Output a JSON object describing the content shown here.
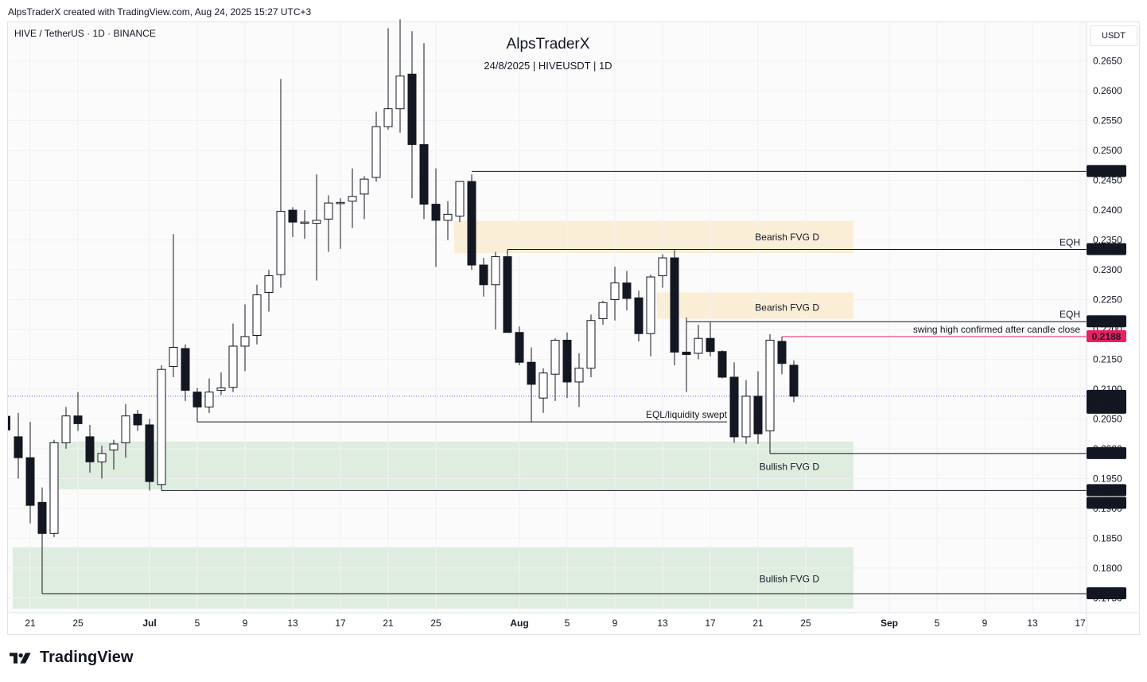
{
  "header": {
    "credit": "AlpsTraderX created with TradingView.com, Aug 24, 2025 15:27 UTC+3"
  },
  "symbol_line": "HIVE / TetherUS · 1D · BINANCE",
  "watermark": {
    "title": "AlpsTraderX",
    "subtitle": "24/8/2025 | HIVEUSDT | 1D"
  },
  "currency_button": "USDT",
  "footer": {
    "brand": "TradingView",
    "logo_icon": "tradingview-logo-icon"
  },
  "colors": {
    "bearish_zone": "#fbecd2",
    "bullish_zone": "#dcebdd",
    "pink": "#e91e63",
    "dark_label": "#131722",
    "price_dots": "#5b5bd6"
  },
  "chart_data": {
    "type": "candlestick",
    "symbol": "HIVEUSDT",
    "interval": "1D",
    "ylim": [
      0.1725,
      0.2715
    ],
    "x_range": [
      "2025-06-20",
      "2025-09-17"
    ],
    "price_axis_ticks": [
      "0.2650",
      "0.2600",
      "0.2550",
      "0.2500",
      "0.2450",
      "0.2400",
      "0.2350",
      "0.2300",
      "0.2250",
      "0.2200",
      "0.2150",
      "0.2100",
      "0.2050",
      "0.2000",
      "0.1950",
      "0.1900",
      "0.1850",
      "0.1800",
      "0.1750"
    ],
    "time_axis_ticks": [
      {
        "label": "21",
        "date": "2025-06-21"
      },
      {
        "label": "25",
        "date": "2025-06-25"
      },
      {
        "label": "Jul",
        "date": "2025-07-01"
      },
      {
        "label": "5",
        "date": "2025-07-05"
      },
      {
        "label": "9",
        "date": "2025-07-09"
      },
      {
        "label": "13",
        "date": "2025-07-13"
      },
      {
        "label": "17",
        "date": "2025-07-17"
      },
      {
        "label": "21",
        "date": "2025-07-21"
      },
      {
        "label": "25",
        "date": "2025-07-25"
      },
      {
        "label": "Aug",
        "date": "2025-08-01"
      },
      {
        "label": "5",
        "date": "2025-08-05"
      },
      {
        "label": "9",
        "date": "2025-08-09"
      },
      {
        "label": "13",
        "date": "2025-08-13"
      },
      {
        "label": "17",
        "date": "2025-08-17"
      },
      {
        "label": "21",
        "date": "2025-08-21"
      },
      {
        "label": "25",
        "date": "2025-08-25"
      },
      {
        "label": "Sep",
        "date": "2025-09-01"
      },
      {
        "label": "5",
        "date": "2025-09-05"
      },
      {
        "label": "9",
        "date": "2025-09-09"
      },
      {
        "label": "13",
        "date": "2025-09-13"
      },
      {
        "label": "17",
        "date": "2025-09-17"
      }
    ],
    "candles": [
      {
        "d": "2025-06-20",
        "o": 0.202,
        "h": 0.206,
        "l": 0.195,
        "c": 0.1985
      },
      {
        "d": "2025-06-21",
        "o": 0.1985,
        "h": 0.2045,
        "l": 0.1875,
        "c": 0.1905
      },
      {
        "d": "2025-06-22",
        "o": 0.191,
        "h": 0.1935,
        "l": 0.183,
        "c": 0.1858
      },
      {
        "d": "2025-06-23",
        "o": 0.1858,
        "h": 0.2015,
        "l": 0.1852,
        "c": 0.201
      },
      {
        "d": "2025-06-24",
        "o": 0.201,
        "h": 0.207,
        "l": 0.2,
        "c": 0.2055
      },
      {
        "d": "2025-06-25",
        "o": 0.2055,
        "h": 0.2095,
        "l": 0.203,
        "c": 0.2042
      },
      {
        "d": "2025-06-26",
        "o": 0.202,
        "h": 0.204,
        "l": 0.196,
        "c": 0.1978
      },
      {
        "d": "2025-06-27",
        "o": 0.1978,
        "h": 0.2005,
        "l": 0.195,
        "c": 0.1992
      },
      {
        "d": "2025-06-28",
        "o": 0.1998,
        "h": 0.2015,
        "l": 0.1965,
        "c": 0.2008
      },
      {
        "d": "2025-06-29",
        "o": 0.201,
        "h": 0.2075,
        "l": 0.1985,
        "c": 0.2055
      },
      {
        "d": "2025-06-30",
        "o": 0.2058,
        "h": 0.2065,
        "l": 0.203,
        "c": 0.204
      },
      {
        "d": "2025-07-01",
        "o": 0.204,
        "h": 0.205,
        "l": 0.193,
        "c": 0.1945
      },
      {
        "d": "2025-07-02",
        "o": 0.194,
        "h": 0.214,
        "l": 0.193,
        "c": 0.2133
      },
      {
        "d": "2025-07-03",
        "o": 0.2138,
        "h": 0.236,
        "l": 0.212,
        "c": 0.217
      },
      {
        "d": "2025-07-04",
        "o": 0.2168,
        "h": 0.2175,
        "l": 0.208,
        "c": 0.2098
      },
      {
        "d": "2025-07-05",
        "o": 0.2095,
        "h": 0.2102,
        "l": 0.205,
        "c": 0.207
      },
      {
        "d": "2025-07-06",
        "o": 0.207,
        "h": 0.2118,
        "l": 0.206,
        "c": 0.2095
      },
      {
        "d": "2025-07-07",
        "o": 0.2098,
        "h": 0.2128,
        "l": 0.209,
        "c": 0.2102
      },
      {
        "d": "2025-07-08",
        "o": 0.2103,
        "h": 0.221,
        "l": 0.2095,
        "c": 0.2172
      },
      {
        "d": "2025-07-09",
        "o": 0.2172,
        "h": 0.2242,
        "l": 0.213,
        "c": 0.2188
      },
      {
        "d": "2025-07-10",
        "o": 0.219,
        "h": 0.2275,
        "l": 0.2175,
        "c": 0.2258
      },
      {
        "d": "2025-07-11",
        "o": 0.2262,
        "h": 0.23,
        "l": 0.223,
        "c": 0.229
      },
      {
        "d": "2025-07-12",
        "o": 0.2292,
        "h": 0.262,
        "l": 0.227,
        "c": 0.2398
      },
      {
        "d": "2025-07-13",
        "o": 0.24,
        "h": 0.2405,
        "l": 0.2355,
        "c": 0.238
      },
      {
        "d": "2025-07-14",
        "o": 0.238,
        "h": 0.24,
        "l": 0.2352,
        "c": 0.238
      },
      {
        "d": "2025-07-15",
        "o": 0.2378,
        "h": 0.246,
        "l": 0.2282,
        "c": 0.2383
      },
      {
        "d": "2025-07-16",
        "o": 0.2385,
        "h": 0.2425,
        "l": 0.233,
        "c": 0.2412
      },
      {
        "d": "2025-07-17",
        "o": 0.2412,
        "h": 0.242,
        "l": 0.2335,
        "c": 0.2413
      },
      {
        "d": "2025-07-18",
        "o": 0.2415,
        "h": 0.247,
        "l": 0.237,
        "c": 0.2423
      },
      {
        "d": "2025-07-19",
        "o": 0.2427,
        "h": 0.2457,
        "l": 0.2385,
        "c": 0.2452
      },
      {
        "d": "2025-07-20",
        "o": 0.2455,
        "h": 0.2565,
        "l": 0.2448,
        "c": 0.254
      },
      {
        "d": "2025-07-21",
        "o": 0.254,
        "h": 0.2705,
        "l": 0.2535,
        "c": 0.257
      },
      {
        "d": "2025-07-22",
        "o": 0.257,
        "h": 0.272,
        "l": 0.253,
        "c": 0.2625
      },
      {
        "d": "2025-07-23",
        "o": 0.2628,
        "h": 0.27,
        "l": 0.242,
        "c": 0.251
      },
      {
        "d": "2025-07-24",
        "o": 0.251,
        "h": 0.268,
        "l": 0.2385,
        "c": 0.241
      },
      {
        "d": "2025-07-25",
        "o": 0.241,
        "h": 0.247,
        "l": 0.2305,
        "c": 0.2383
      },
      {
        "d": "2025-07-26",
        "o": 0.2383,
        "h": 0.2415,
        "l": 0.235,
        "c": 0.2393
      },
      {
        "d": "2025-07-27",
        "o": 0.239,
        "h": 0.244,
        "l": 0.238,
        "c": 0.2448
      },
      {
        "d": "2025-07-28",
        "o": 0.2448,
        "h": 0.246,
        "l": 0.23,
        "c": 0.2308
      },
      {
        "d": "2025-07-29",
        "o": 0.2308,
        "h": 0.232,
        "l": 0.2255,
        "c": 0.2275
      },
      {
        "d": "2025-07-30",
        "o": 0.2275,
        "h": 0.233,
        "l": 0.22,
        "c": 0.2322
      },
      {
        "d": "2025-07-31",
        "o": 0.2322,
        "h": 0.2325,
        "l": 0.22,
        "c": 0.2195
      },
      {
        "d": "2025-08-01",
        "o": 0.2195,
        "h": 0.2205,
        "l": 0.214,
        "c": 0.2145
      },
      {
        "d": "2025-08-02",
        "o": 0.2145,
        "h": 0.217,
        "l": 0.2085,
        "c": 0.2108
      },
      {
        "d": "2025-08-03",
        "o": 0.2085,
        "h": 0.2135,
        "l": 0.206,
        "c": 0.2127
      },
      {
        "d": "2025-08-04",
        "o": 0.2125,
        "h": 0.2185,
        "l": 0.208,
        "c": 0.2182
      },
      {
        "d": "2025-08-05",
        "o": 0.2182,
        "h": 0.2195,
        "l": 0.2085,
        "c": 0.2112
      },
      {
        "d": "2025-08-06",
        "o": 0.2112,
        "h": 0.216,
        "l": 0.207,
        "c": 0.2135
      },
      {
        "d": "2025-08-07",
        "o": 0.2135,
        "h": 0.2225,
        "l": 0.212,
        "c": 0.2215
      },
      {
        "d": "2025-08-08",
        "o": 0.2218,
        "h": 0.2248,
        "l": 0.2208,
        "c": 0.2245
      },
      {
        "d": "2025-08-09",
        "o": 0.225,
        "h": 0.2305,
        "l": 0.2215,
        "c": 0.2278
      },
      {
        "d": "2025-08-10",
        "o": 0.2278,
        "h": 0.2298,
        "l": 0.2232,
        "c": 0.2252
      },
      {
        "d": "2025-08-11",
        "o": 0.2253,
        "h": 0.2265,
        "l": 0.218,
        "c": 0.2193
      },
      {
        "d": "2025-08-12",
        "o": 0.2193,
        "h": 0.2292,
        "l": 0.2155,
        "c": 0.2288
      },
      {
        "d": "2025-08-13",
        "o": 0.229,
        "h": 0.2326,
        "l": 0.227,
        "c": 0.232
      },
      {
        "d": "2025-08-14",
        "o": 0.232,
        "h": 0.2333,
        "l": 0.214,
        "c": 0.2162
      },
      {
        "d": "2025-08-15",
        "o": 0.2162,
        "h": 0.222,
        "l": 0.2095,
        "c": 0.2158
      },
      {
        "d": "2025-08-16",
        "o": 0.216,
        "h": 0.2208,
        "l": 0.215,
        "c": 0.2185
      },
      {
        "d": "2025-08-17",
        "o": 0.2185,
        "h": 0.2212,
        "l": 0.2155,
        "c": 0.2163
      },
      {
        "d": "2025-08-18",
        "o": 0.2163,
        "h": 0.2165,
        "l": 0.2118,
        "c": 0.212
      },
      {
        "d": "2025-08-19",
        "o": 0.212,
        "h": 0.2145,
        "l": 0.201,
        "c": 0.202
      },
      {
        "d": "2025-08-20",
        "o": 0.202,
        "h": 0.2115,
        "l": 0.2008,
        "c": 0.2088
      },
      {
        "d": "2025-08-21",
        "o": 0.2088,
        "h": 0.213,
        "l": 0.2008,
        "c": 0.2025
      },
      {
        "d": "2025-08-22",
        "o": 0.203,
        "h": 0.2192,
        "l": 0.1992,
        "c": 0.2182
      },
      {
        "d": "2025-08-23",
        "o": 0.218,
        "h": 0.2188,
        "l": 0.2125,
        "c": 0.2143
      },
      {
        "d": "2025-08-24",
        "o": 0.214,
        "h": 0.2148,
        "l": 0.2078,
        "c": 0.2088
      }
    ],
    "zones": [
      {
        "label": "Bearish FVG D",
        "from": "2025-07-27",
        "to": "2025-08-29",
        "top": 0.2382,
        "bottom": 0.2328,
        "color": "#fbecd2"
      },
      {
        "label": "Bearish FVG D",
        "from": "2025-08-13",
        "to": "2025-08-29",
        "top": 0.2262,
        "bottom": 0.2218,
        "color": "#fbecd2"
      },
      {
        "label": "Bullish FVG D",
        "from": "2025-06-23",
        "to": "2025-08-29",
        "top": 0.2012,
        "bottom": 0.1932,
        "color": "#dcebdd"
      },
      {
        "label": "Bullish FVG D",
        "from": "2025-06-20",
        "to": "2025-08-29",
        "top": 0.1835,
        "bottom": 0.1732,
        "color": "#dcebdd"
      }
    ],
    "zone_labels": [
      {
        "text": "Bearish FVG D",
        "date": "2025-08-25",
        "price": 0.2355
      },
      {
        "text": "Bearish FVG D",
        "date": "2025-08-25",
        "price": 0.2237
      },
      {
        "text": "Bullish FVG D",
        "date": "2025-08-25",
        "price": 0.197
      },
      {
        "text": "Bullish FVG D",
        "date": "2025-08-25",
        "price": 0.1782
      }
    ],
    "levels": [
      {
        "price": 0.2465,
        "from": "2025-07-28",
        "label": "0.2465",
        "color": "#131722"
      },
      {
        "price": 0.2334,
        "from": "2025-07-31",
        "label": "0.2334",
        "color": "#131722",
        "note": "EQH"
      },
      {
        "price": 0.2213,
        "from": "2025-08-15",
        "label": "0.2213",
        "color": "#131722",
        "note": "EQH"
      },
      {
        "price": 0.2188,
        "from": "2025-08-23",
        "label": "0.2188",
        "color": "#e91e63",
        "note": "swing high confirmed after candle close"
      },
      {
        "price": 0.1992,
        "from": "2025-08-22",
        "label": "0.1992",
        "color": "#131722"
      },
      {
        "price": 0.193,
        "from": "2025-07-02",
        "label": "0.1930",
        "color": "#131722"
      },
      {
        "price": 0.1757,
        "from": "2025-06-22",
        "label": "0.1757",
        "color": "#131722"
      }
    ],
    "extra_price_labels": [
      {
        "price": 0.193,
        "label": "0.1930"
      }
    ],
    "eql_line": {
      "price": 0.2045,
      "from": "2025-07-05",
      "to": "2025-08-18",
      "text": "EQL/liquidity swept"
    },
    "eql_vertical_date": "2025-08-02",
    "current_price": {
      "price": 0.2088,
      "label": "0.2088",
      "countdown": "11:32:33"
    }
  }
}
